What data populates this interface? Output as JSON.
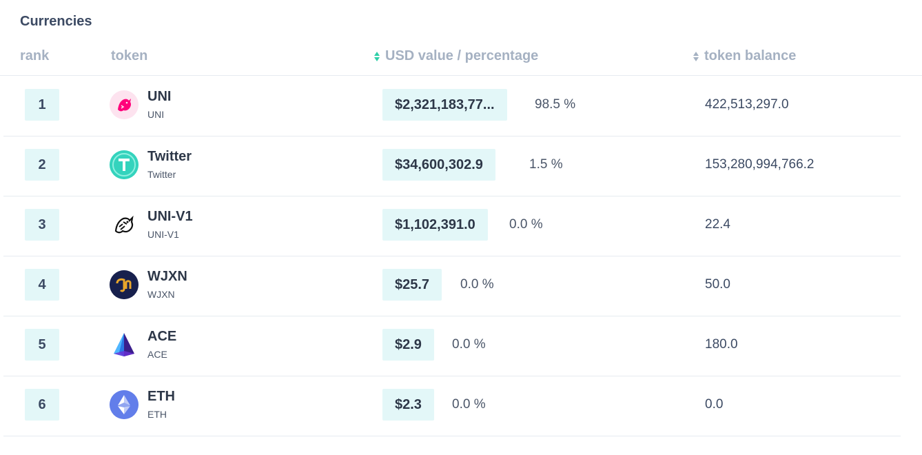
{
  "section_title": "Currencies",
  "columns": {
    "rank": "rank",
    "token": "token",
    "usd": "USD value / percentage",
    "balance": "token balance"
  },
  "rows": [
    {
      "rank": "1",
      "name": "UNI",
      "symbol": "UNI",
      "usd": "$2,321,183,77...",
      "pct": "98.5 %",
      "balance": "422,513,297.0",
      "icon": "uniswap-pink-unicorn-icon"
    },
    {
      "rank": "2",
      "name": "Twitter",
      "symbol": "Twitter",
      "usd": "$34,600,302.9",
      "pct": "1.5 %",
      "balance": "153,280,994,766.2",
      "icon": "tether-t-icon"
    },
    {
      "rank": "3",
      "name": "UNI-V1",
      "symbol": "UNI-V1",
      "usd": "$1,102,391.0",
      "pct": "0.0 %",
      "balance": "22.4",
      "icon": "uniswap-bw-unicorn-icon"
    },
    {
      "rank": "4",
      "name": "WJXN",
      "symbol": "WJXN",
      "usd": "$25.7",
      "pct": "0.0 %",
      "balance": "50.0",
      "icon": "jaxnet-icon"
    },
    {
      "rank": "5",
      "name": "ACE",
      "symbol": "ACE",
      "usd": "$2.9",
      "pct": "0.0 %",
      "balance": "180.0",
      "icon": "ace-pyramid-icon"
    },
    {
      "rank": "6",
      "name": "ETH",
      "symbol": "ETH",
      "usd": "$2.3",
      "pct": "0.0 %",
      "balance": "0.0",
      "icon": "ethereum-icon"
    }
  ],
  "colors": {
    "badge_bg": "#e3f7f8",
    "sort_active": "#2ecfa8",
    "header_text": "#a5b1c2"
  }
}
